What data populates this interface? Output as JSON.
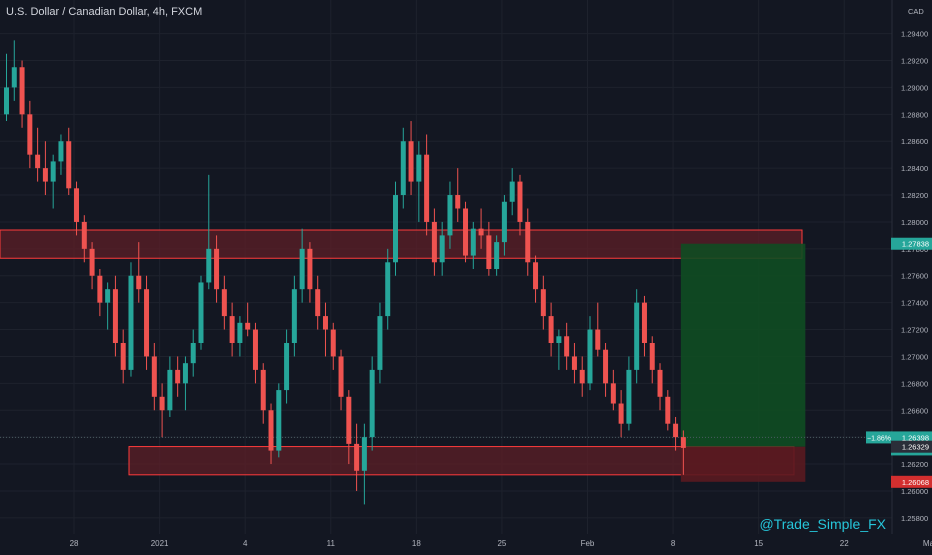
{
  "header": {
    "title": "U.S. Dollar / Canadian Dollar, 4h, FXCM"
  },
  "axis": {
    "currency": "CAD"
  },
  "watermark": "@Trade_Simple_FX",
  "colors": {
    "background": "#131722",
    "grid": "#1e222d",
    "up": "#26a69a",
    "down": "#ef5350",
    "zone_fill": "#5d1f27",
    "zone_border": "#ff3b3b",
    "profit": "#0f4d22",
    "loss": "#5a1a20",
    "tag_green": "#26a69a",
    "tag_red": "#d32f2f"
  },
  "chart_data": {
    "type": "candlestick",
    "title": "U.S. Dollar / Canadian Dollar, 4h, FXCM",
    "ylabel": "CAD",
    "ylim": [
      1.2568,
      1.2965
    ],
    "y_ticks": [
      "1.29400",
      "1.29200",
      "1.29000",
      "1.28800",
      "1.28600",
      "1.28400",
      "1.28200",
      "1.28000",
      "1.27800",
      "1.27600",
      "1.27400",
      "1.27200",
      "1.27000",
      "1.26800",
      "1.26600",
      "1.26400",
      "1.26200",
      "1.26000",
      "1.25800"
    ],
    "x_ticks": [
      "28",
      "2021",
      "4",
      "11",
      "18",
      "25",
      "Feb",
      "8",
      "15",
      "22",
      "Mar"
    ],
    "x_tick_index": [
      9,
      20,
      31,
      42,
      53,
      64,
      75,
      86,
      97,
      108,
      119
    ],
    "resistance_zone": [
      1.2773,
      1.2794
    ],
    "support_zone": [
      1.2612,
      1.2633
    ],
    "position": {
      "entry": 1.26329,
      "target": 1.27838,
      "stop": 1.26068,
      "start_index": 87,
      "end_index": 103
    },
    "price_labels": {
      "target": "1.27838",
      "change": "−1.86%",
      "current": "1.26398",
      "countdown": "39:21",
      "entry": "1.26329",
      "stop": "1.26068"
    },
    "ohlc": [
      [
        1.288,
        1.2925,
        1.2875,
        1.29
      ],
      [
        1.29,
        1.2935,
        1.289,
        1.2915
      ],
      [
        1.2915,
        1.292,
        1.287,
        1.288
      ],
      [
        1.288,
        1.289,
        1.284,
        1.285
      ],
      [
        1.285,
        1.287,
        1.283,
        1.284
      ],
      [
        1.284,
        1.286,
        1.282,
        1.283
      ],
      [
        1.283,
        1.285,
        1.281,
        1.2845
      ],
      [
        1.2845,
        1.2865,
        1.2835,
        1.286
      ],
      [
        1.286,
        1.287,
        1.282,
        1.2825
      ],
      [
        1.2825,
        1.283,
        1.279,
        1.28
      ],
      [
        1.28,
        1.2805,
        1.277,
        1.278
      ],
      [
        1.278,
        1.2785,
        1.275,
        1.276
      ],
      [
        1.276,
        1.2765,
        1.273,
        1.274
      ],
      [
        1.274,
        1.2755,
        1.272,
        1.275
      ],
      [
        1.275,
        1.276,
        1.27,
        1.271
      ],
      [
        1.271,
        1.272,
        1.268,
        1.269
      ],
      [
        1.269,
        1.277,
        1.2685,
        1.276
      ],
      [
        1.276,
        1.2785,
        1.274,
        1.275
      ],
      [
        1.275,
        1.276,
        1.269,
        1.27
      ],
      [
        1.27,
        1.271,
        1.266,
        1.267
      ],
      [
        1.267,
        1.268,
        1.264,
        1.266
      ],
      [
        1.266,
        1.27,
        1.2655,
        1.269
      ],
      [
        1.269,
        1.27,
        1.267,
        1.268
      ],
      [
        1.268,
        1.27,
        1.266,
        1.2695
      ],
      [
        1.2695,
        1.272,
        1.2685,
        1.271
      ],
      [
        1.271,
        1.276,
        1.2705,
        1.2755
      ],
      [
        1.2755,
        1.2835,
        1.275,
        1.278
      ],
      [
        1.278,
        1.279,
        1.274,
        1.275
      ],
      [
        1.275,
        1.276,
        1.272,
        1.273
      ],
      [
        1.273,
        1.274,
        1.27,
        1.271
      ],
      [
        1.271,
        1.273,
        1.27,
        1.2725
      ],
      [
        1.2725,
        1.274,
        1.2715,
        1.272
      ],
      [
        1.272,
        1.2725,
        1.268,
        1.269
      ],
      [
        1.269,
        1.2695,
        1.265,
        1.266
      ],
      [
        1.266,
        1.2665,
        1.262,
        1.263
      ],
      [
        1.263,
        1.268,
        1.2625,
        1.2675
      ],
      [
        1.2675,
        1.272,
        1.2665,
        1.271
      ],
      [
        1.271,
        1.276,
        1.27,
        1.275
      ],
      [
        1.275,
        1.2795,
        1.274,
        1.278
      ],
      [
        1.278,
        1.2785,
        1.274,
        1.275
      ],
      [
        1.275,
        1.276,
        1.272,
        1.273
      ],
      [
        1.273,
        1.274,
        1.27,
        1.272
      ],
      [
        1.272,
        1.2725,
        1.269,
        1.27
      ],
      [
        1.27,
        1.2705,
        1.266,
        1.267
      ],
      [
        1.267,
        1.2675,
        1.262,
        1.2635
      ],
      [
        1.2635,
        1.265,
        1.26,
        1.2615
      ],
      [
        1.2615,
        1.265,
        1.259,
        1.264
      ],
      [
        1.264,
        1.27,
        1.263,
        1.269
      ],
      [
        1.269,
        1.274,
        1.268,
        1.273
      ],
      [
        1.273,
        1.278,
        1.272,
        1.277
      ],
      [
        1.277,
        1.283,
        1.276,
        1.282
      ],
      [
        1.282,
        1.287,
        1.281,
        1.286
      ],
      [
        1.286,
        1.2875,
        1.282,
        1.283
      ],
      [
        1.283,
        1.286,
        1.28,
        1.285
      ],
      [
        1.285,
        1.2865,
        1.279,
        1.28
      ],
      [
        1.28,
        1.281,
        1.276,
        1.277
      ],
      [
        1.277,
        1.28,
        1.276,
        1.279
      ],
      [
        1.279,
        1.283,
        1.278,
        1.282
      ],
      [
        1.282,
        1.284,
        1.28,
        1.281
      ],
      [
        1.281,
        1.2815,
        1.277,
        1.2775
      ],
      [
        1.2775,
        1.28,
        1.2765,
        1.2795
      ],
      [
        1.2795,
        1.281,
        1.278,
        1.279
      ],
      [
        1.279,
        1.28,
        1.276,
        1.2765
      ],
      [
        1.2765,
        1.279,
        1.276,
        1.2785
      ],
      [
        1.2785,
        1.282,
        1.2775,
        1.2815
      ],
      [
        1.2815,
        1.284,
        1.2805,
        1.283
      ],
      [
        1.283,
        1.2835,
        1.279,
        1.28
      ],
      [
        1.28,
        1.281,
        1.276,
        1.277
      ],
      [
        1.277,
        1.2775,
        1.274,
        1.275
      ],
      [
        1.275,
        1.276,
        1.272,
        1.273
      ],
      [
        1.273,
        1.274,
        1.27,
        1.271
      ],
      [
        1.271,
        1.272,
        1.269,
        1.2715
      ],
      [
        1.2715,
        1.2725,
        1.269,
        1.27
      ],
      [
        1.27,
        1.271,
        1.268,
        1.269
      ],
      [
        1.269,
        1.27,
        1.267,
        1.268
      ],
      [
        1.268,
        1.273,
        1.2675,
        1.272
      ],
      [
        1.272,
        1.274,
        1.27,
        1.2705
      ],
      [
        1.2705,
        1.271,
        1.267,
        1.268
      ],
      [
        1.268,
        1.269,
        1.266,
        1.2665
      ],
      [
        1.2665,
        1.2675,
        1.264,
        1.265
      ],
      [
        1.265,
        1.27,
        1.2645,
        1.269
      ],
      [
        1.269,
        1.275,
        1.268,
        1.274
      ],
      [
        1.274,
        1.2745,
        1.27,
        1.271
      ],
      [
        1.271,
        1.2715,
        1.268,
        1.269
      ],
      [
        1.269,
        1.2695,
        1.266,
        1.267
      ],
      [
        1.267,
        1.2675,
        1.2645,
        1.265
      ],
      [
        1.265,
        1.2655,
        1.263,
        1.264
      ],
      [
        1.264,
        1.2645,
        1.2612,
        1.2632
      ]
    ]
  }
}
